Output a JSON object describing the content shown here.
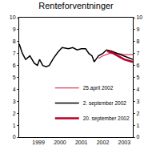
{
  "chart_data": {
    "type": "line",
    "title": "Renteforventninger",
    "x": null,
    "series": [
      {
        "name": "25.april 2002",
        "color": "#e23a5c",
        "x": [
          2002.3,
          2002.5,
          2002.8,
          2003.2,
          2003.5,
          2003.9
        ],
        "values": [
          6.6,
          6.8,
          7.0,
          7.0,
          6.9,
          6.9
        ]
      },
      {
        "name": "2. september 2002",
        "color": "#000000",
        "x": [
          1998.6,
          1998.75,
          1998.9,
          1999.1,
          1999.3,
          1999.45,
          1999.55,
          1999.7,
          1999.85,
          2000.0,
          2000.2,
          2000.4,
          2000.6,
          2000.9,
          2001.1,
          2001.3,
          2001.5,
          2001.7,
          2001.85,
          2002.0,
          2002.1,
          2002.3,
          2002.5,
          2002.67,
          2002.9,
          2003.2,
          2003.5,
          2003.9
        ],
        "values": [
          7.8,
          7.0,
          6.5,
          6.8,
          6.2,
          6.0,
          6.5,
          6.0,
          5.9,
          6.0,
          6.6,
          7.1,
          7.5,
          7.4,
          7.5,
          7.3,
          7.4,
          7.4,
          7.0,
          6.8,
          6.3,
          6.8,
          7.0,
          7.3,
          7.2,
          7.0,
          6.8,
          6.5
        ]
      },
      {
        "name": "20. september 2002",
        "color": "#b8002a",
        "x": [
          2002.7,
          2002.9,
          2003.2,
          2003.5,
          2003.9
        ],
        "values": [
          7.2,
          7.1,
          6.8,
          6.5,
          6.3
        ]
      }
    ],
    "xlim": [
      1998.6,
      2003.9
    ],
    "xticks": [
      {
        "value": 1999.5,
        "label": "1999"
      },
      {
        "value": 2000.5,
        "label": "2000"
      },
      {
        "value": 2001.5,
        "label": "2001"
      },
      {
        "value": 2002.5,
        "label": "2002"
      },
      {
        "value": 2003.5,
        "label": "2003"
      }
    ],
    "ylim": [
      0,
      10
    ],
    "yticks": [
      0,
      1,
      2,
      3,
      4,
      5,
      6,
      7,
      8,
      9,
      10
    ],
    "y2lim": [
      0,
      10
    ],
    "y2ticks": [
      0,
      1,
      2,
      3,
      4,
      5,
      6,
      7,
      8,
      9,
      10
    ],
    "grid": false,
    "legend": "bottom"
  }
}
